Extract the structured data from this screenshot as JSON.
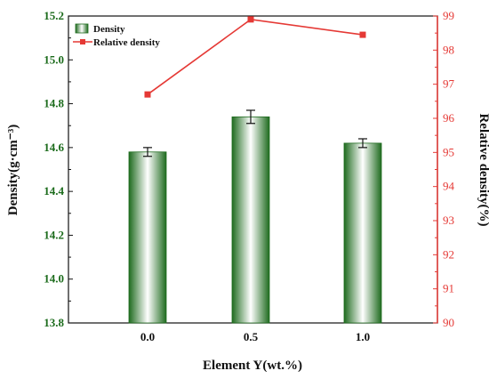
{
  "chart_data": {
    "type": "bar+line",
    "categories": [
      "0.0",
      "0.5",
      "1.0"
    ],
    "series": [
      {
        "name": "Density",
        "type": "bar",
        "axis": "left",
        "values": [
          14.58,
          14.74,
          14.62
        ],
        "error": [
          0.02,
          0.03,
          0.02
        ],
        "color": "#2e7d32"
      },
      {
        "name": "Relative density",
        "type": "line",
        "axis": "right",
        "values": [
          96.7,
          98.9,
          98.45
        ],
        "color": "#e53935"
      }
    ],
    "xlabel": "Element Y(wt.%)",
    "ylabel_left": "Density(g·cm⁻³)",
    "ylabel_right": "Relative density(%)",
    "ylim_left": [
      13.8,
      15.2
    ],
    "yticks_left": [
      "13.8",
      "14.0",
      "14.2",
      "14.4",
      "14.6",
      "14.8",
      "15.0",
      "15.2"
    ],
    "ylim_right": [
      90,
      99
    ],
    "yticks_right": [
      "90",
      "91",
      "92",
      "93",
      "94",
      "95",
      "96",
      "97",
      "98",
      "99"
    ],
    "legend_position": "top-left",
    "grid": false
  }
}
